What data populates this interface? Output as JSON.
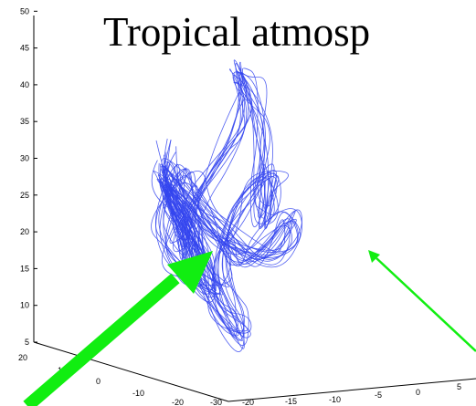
{
  "chart_data": {
    "type": "line",
    "projection": "3d",
    "title": "Tropical atmosp",
    "xlabel": "",
    "ylabel": "",
    "zlabel": "",
    "z_ticks": [
      "5",
      "10",
      "15",
      "20",
      "25",
      "30",
      "35",
      "40",
      "45",
      "50"
    ],
    "zlim": [
      5,
      50
    ],
    "y_ticks": [
      "20",
      "10",
      "0",
      "-10",
      "-20",
      "-30"
    ],
    "x_ticks": [
      "-20",
      "-15",
      "-10",
      "-5",
      "0",
      "5"
    ],
    "series": [
      {
        "color": "#3344ee",
        "points": [
          [
            -14,
            2,
            36
          ],
          [
            -13,
            4,
            31
          ],
          [
            -12,
            0,
            24
          ],
          [
            -11,
            2,
            19
          ],
          [
            -9,
            -2,
            15
          ],
          [
            -8,
            1,
            20
          ],
          [
            -10,
            3,
            27
          ],
          [
            -12,
            5,
            33
          ],
          [
            -14,
            1,
            30
          ],
          [
            -13,
            -1,
            25
          ],
          [
            -11,
            3,
            22
          ],
          [
            -9,
            4,
            28
          ],
          [
            -7,
            1,
            34
          ],
          [
            -6,
            -2,
            39
          ],
          [
            -5,
            0,
            46
          ],
          [
            -4,
            2,
            47
          ],
          [
            -3,
            0,
            44
          ],
          [
            -2,
            -1,
            37
          ],
          [
            -1,
            1,
            30
          ],
          [
            0,
            3,
            26
          ],
          [
            1,
            2,
            28
          ],
          [
            0,
            -1,
            33
          ],
          [
            -2,
            1,
            31
          ],
          [
            -4,
            3,
            26
          ],
          [
            -6,
            2,
            21
          ],
          [
            -7,
            0,
            16
          ],
          [
            -5,
            -1,
            12
          ],
          [
            -4,
            1,
            9
          ],
          [
            -6,
            2,
            13
          ],
          [
            -8,
            3,
            19
          ],
          [
            -11,
            1,
            25
          ],
          [
            -13,
            3,
            32
          ],
          [
            -12,
            5,
            35
          ],
          [
            -10,
            2,
            29
          ],
          [
            -8,
            0,
            24
          ],
          [
            -3,
            2,
            20
          ],
          [
            1,
            3,
            23
          ],
          [
            3,
            1,
            27
          ],
          [
            2,
            -1,
            24
          ],
          [
            -1,
            0,
            20
          ],
          [
            -5,
            2,
            24
          ],
          [
            -9,
            3,
            29
          ],
          [
            -12,
            1,
            34
          ],
          [
            -14,
            3,
            28
          ],
          [
            -12,
            4,
            22
          ],
          [
            -10,
            1,
            18
          ],
          [
            -8,
            3,
            22
          ],
          [
            -10,
            4,
            27
          ],
          [
            -13,
            2,
            31
          ]
        ]
      }
    ],
    "annotations": [
      {
        "type": "arrow",
        "color": "#11ee11",
        "style": "thick"
      },
      {
        "type": "arrow",
        "color": "#11ee11",
        "style": "thin"
      }
    ],
    "grid": false
  }
}
